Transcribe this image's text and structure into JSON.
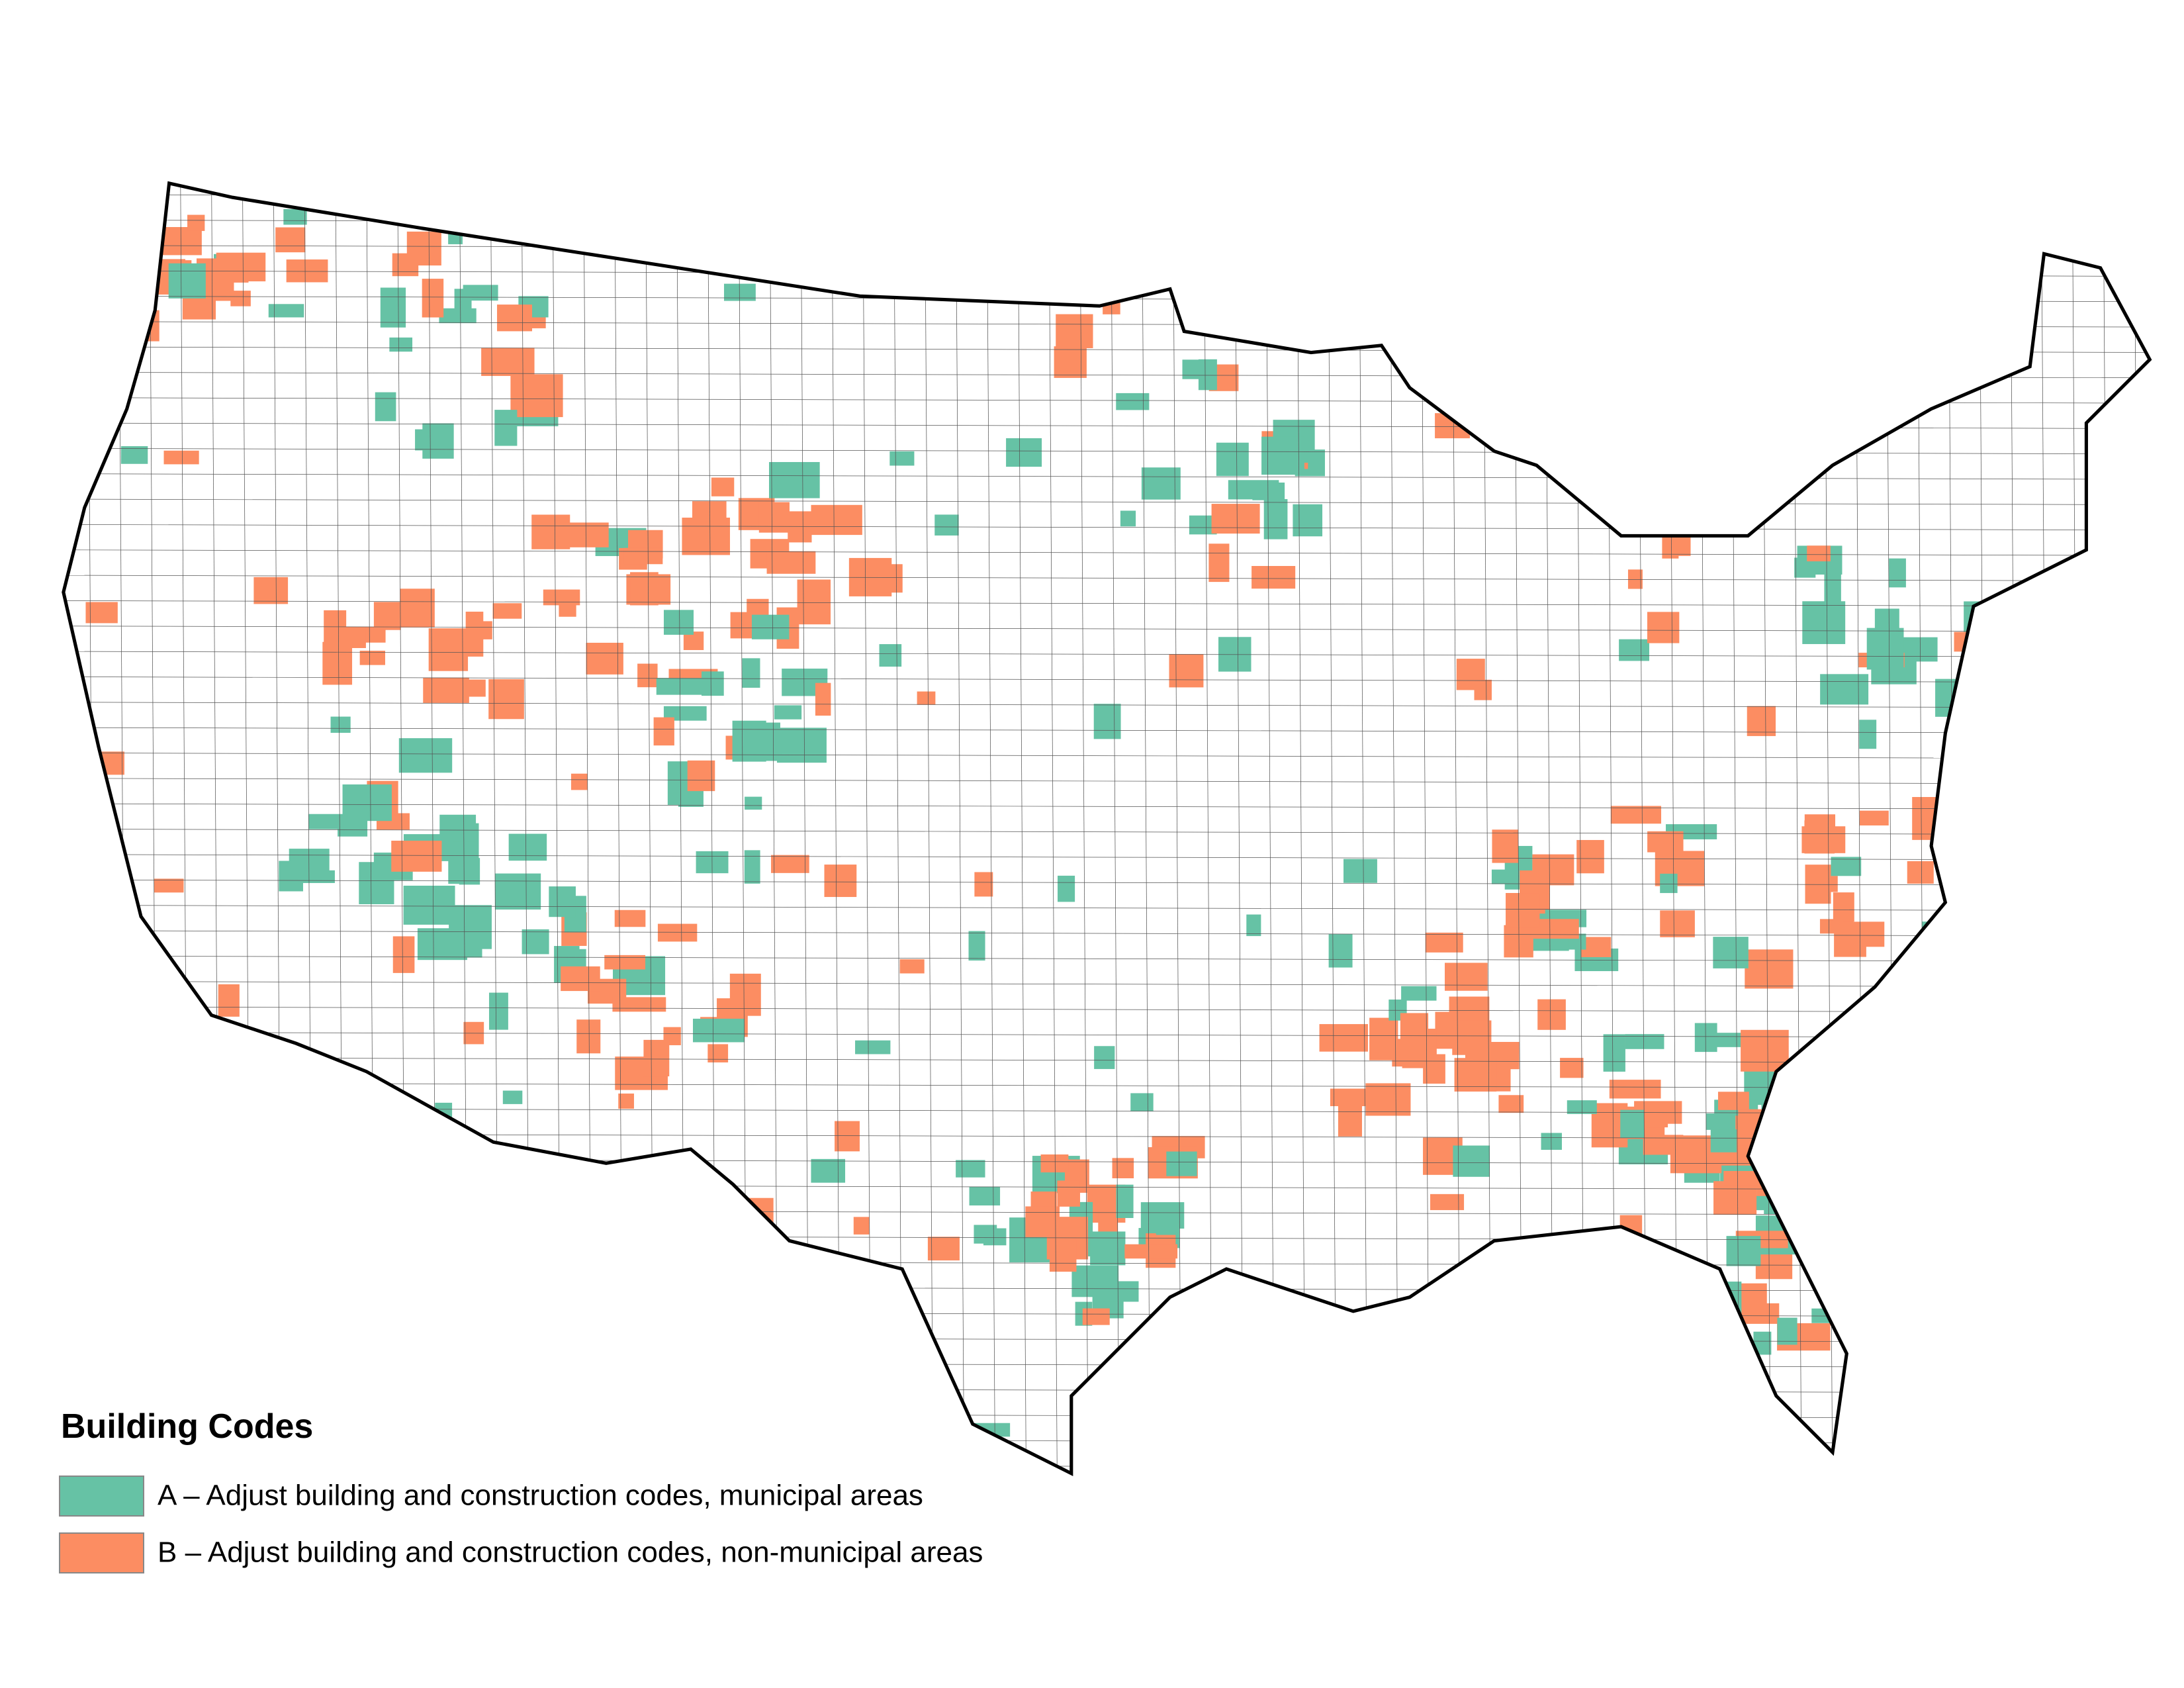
{
  "legend": {
    "title": "Building Codes",
    "items": [
      {
        "label": "A – Adjust building and construction codes, municipal areas",
        "color": "#66c2a5"
      },
      {
        "label": "B – Adjust building and construction codes, non-municipal areas",
        "color": "#fc8d62"
      }
    ]
  }
}
